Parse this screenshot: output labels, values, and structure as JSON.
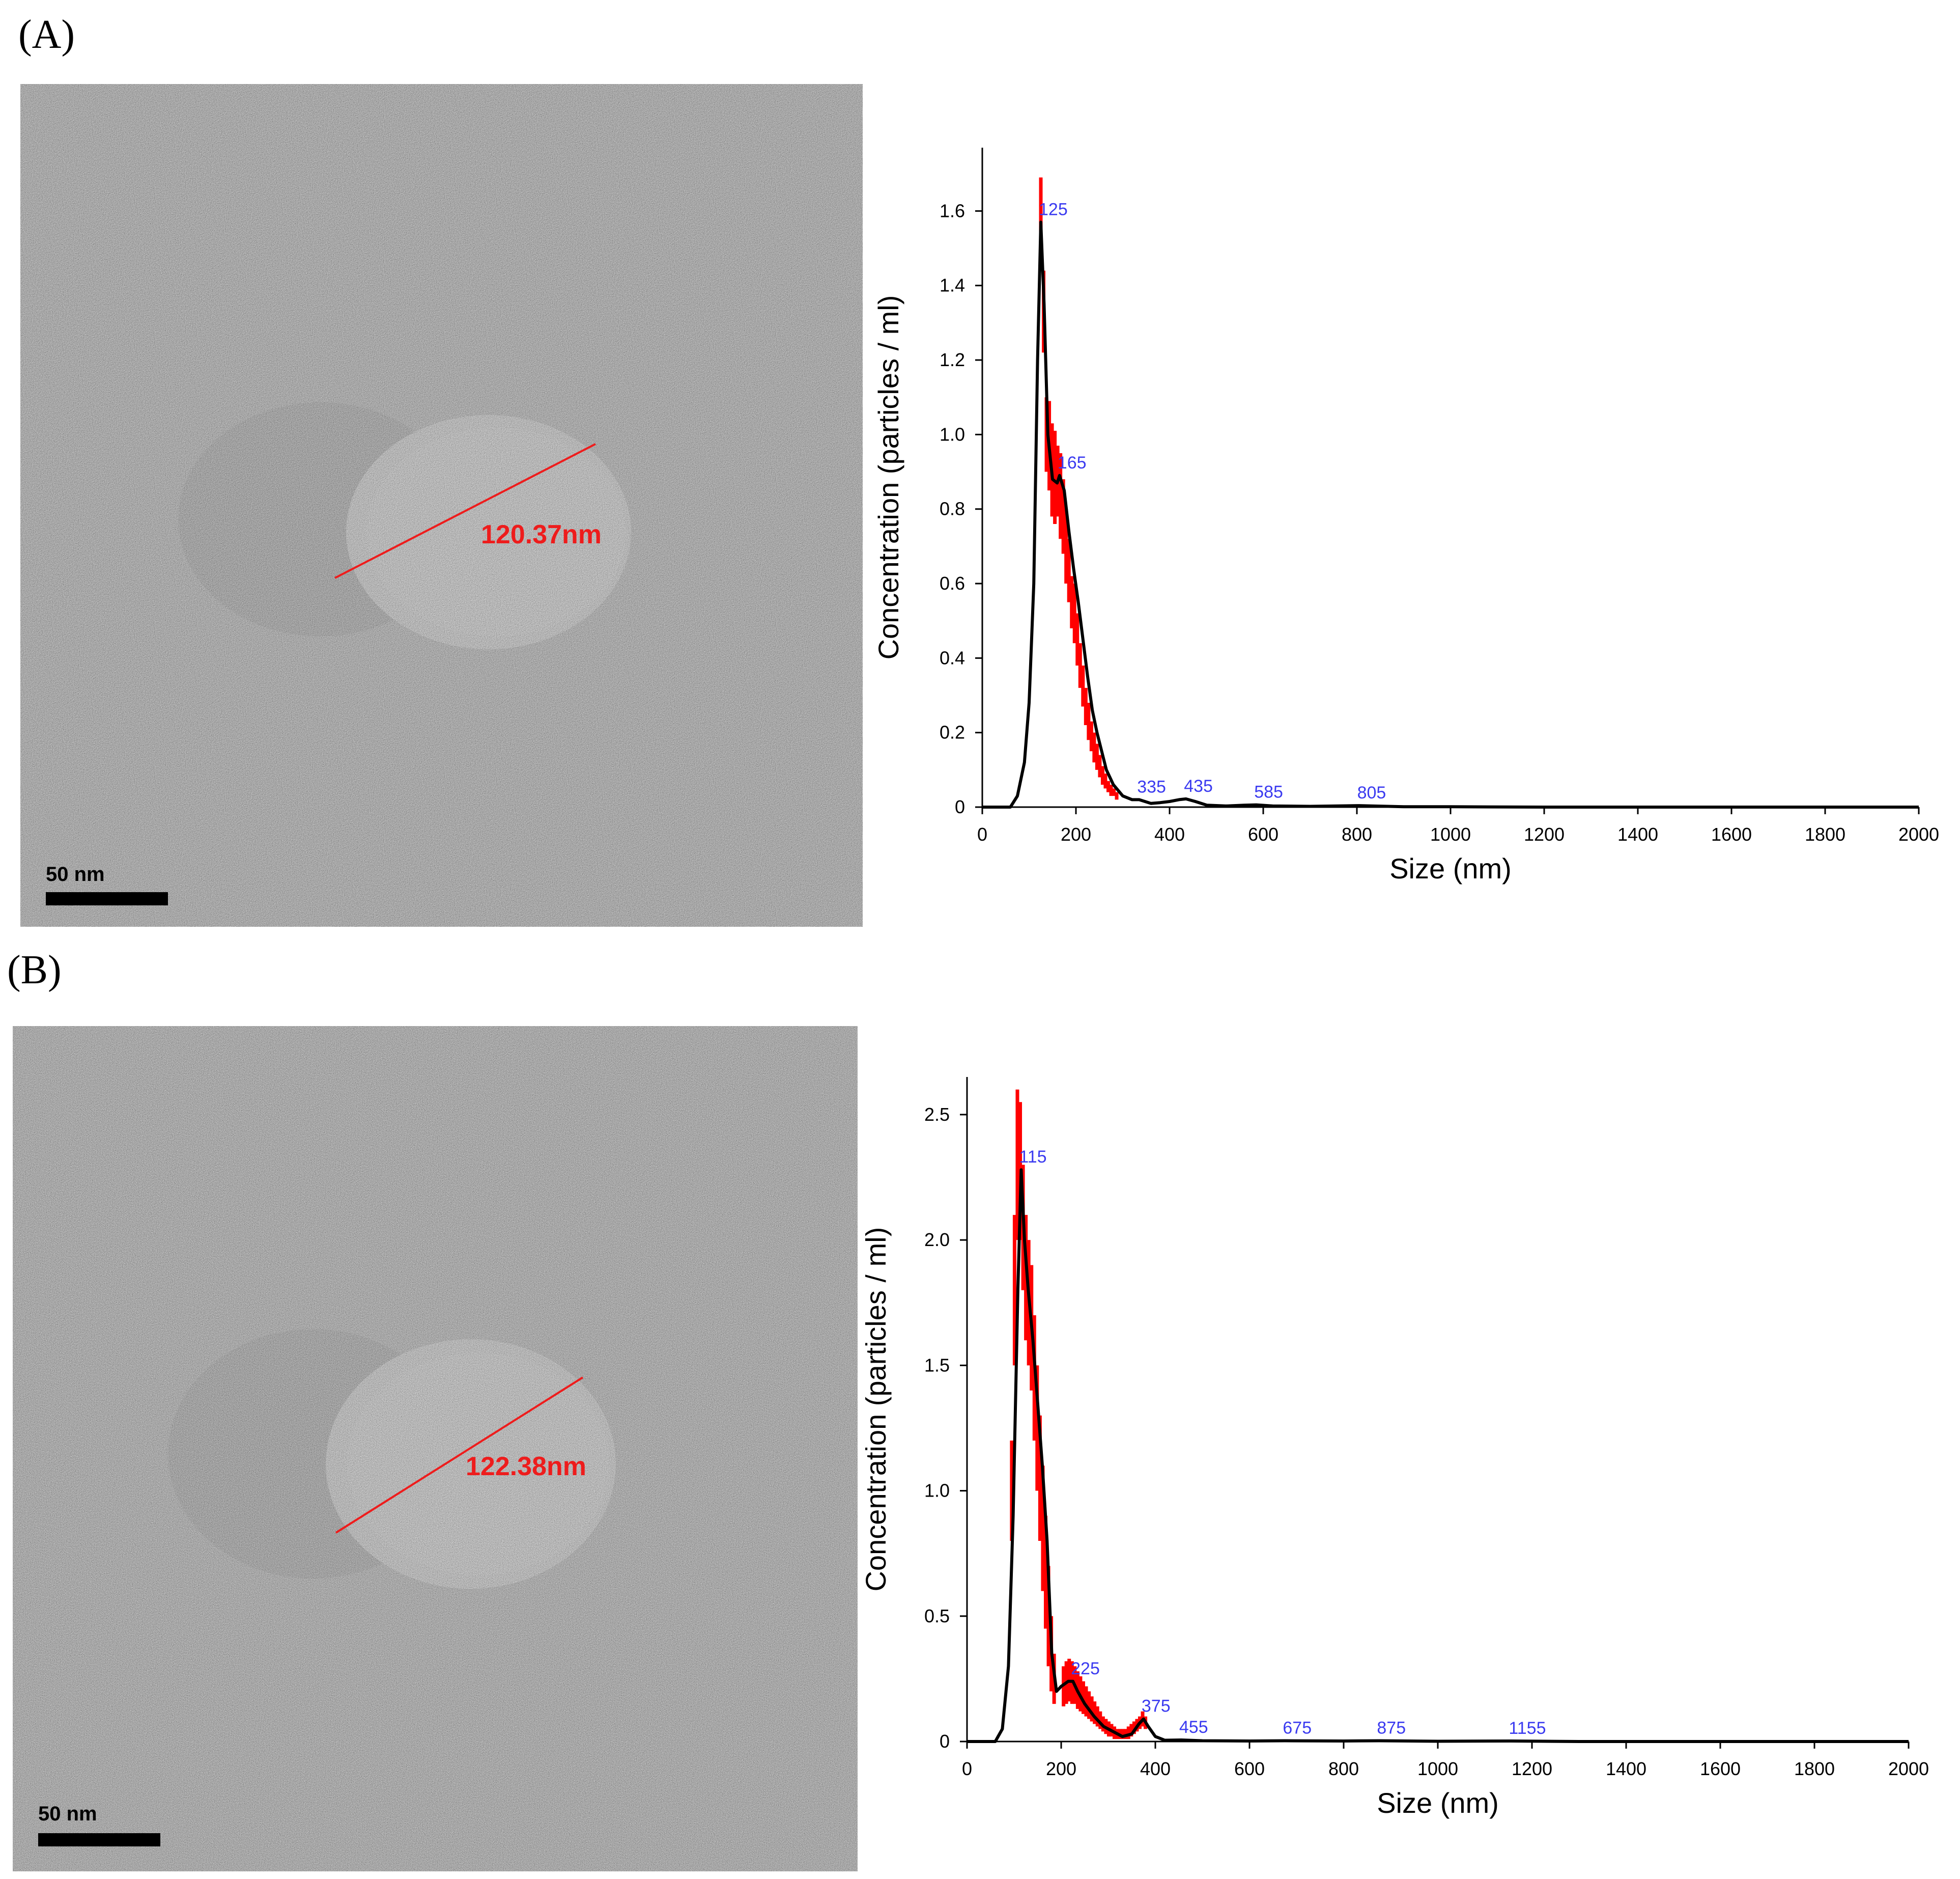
{
  "panels": [
    {
      "label": "(A)",
      "tem": {
        "measurement": "120.37nm",
        "scale_bar": "50 nm"
      }
    },
    {
      "label": "(B)",
      "tem": {
        "measurement": "122.38nm",
        "scale_bar": "50 nm"
      }
    }
  ],
  "colors": {
    "curve": "#000000",
    "error_bars": "#ff0000",
    "peak_labels": "#3b3bf0",
    "measure": "#ee1c1c"
  },
  "chart_data": [
    {
      "type": "line",
      "title": "",
      "xlabel": "Size (nm)",
      "ylabel": "Concentration (particles / ml)",
      "xlim": [
        0,
        2000
      ],
      "ylim": [
        0,
        1.77
      ],
      "xticks": [
        0,
        200,
        400,
        600,
        800,
        1000,
        1200,
        1400,
        1600,
        1800,
        2000
      ],
      "yticks": [
        0,
        0.2,
        0.4,
        0.6,
        0.8,
        1.0,
        1.2,
        1.4,
        1.6
      ],
      "ytick_labels": [
        "0",
        "0.2",
        "0.4",
        "0.6",
        "0.8",
        "1.0",
        "1.2",
        "1.4",
        "1.6"
      ],
      "grid": false,
      "series": [
        {
          "x": [
            0,
            60,
            75,
            90,
            100,
            110,
            118,
            125,
            132,
            140,
            150,
            160,
            165,
            175,
            185,
            195,
            205,
            215,
            225,
            235,
            245,
            255,
            265,
            280,
            300,
            320,
            335,
            360,
            380,
            400,
            420,
            435,
            455,
            480,
            520,
            560,
            585,
            620,
            700,
            805,
            900,
            1000,
            1200,
            1400,
            1600,
            1800,
            2000
          ],
          "y": [
            0,
            0,
            0.03,
            0.12,
            0.28,
            0.6,
            1.2,
            1.57,
            1.35,
            1.0,
            0.88,
            0.87,
            0.89,
            0.85,
            0.74,
            0.64,
            0.55,
            0.45,
            0.35,
            0.26,
            0.2,
            0.15,
            0.1,
            0.06,
            0.03,
            0.02,
            0.02,
            0.01,
            0.012,
            0.015,
            0.02,
            0.022,
            0.015,
            0.005,
            0.003,
            0.005,
            0.006,
            0.003,
            0.002,
            0.004,
            0.001,
            0.001,
            0,
            0,
            0,
            0,
            0
          ]
        }
      ],
      "error_bars": {
        "x": [
          125,
          131,
          137,
          143,
          149,
          155,
          161,
          167,
          173,
          179,
          185,
          191,
          197,
          203,
          209,
          215,
          221,
          227,
          233,
          239,
          245,
          251,
          257,
          263,
          269,
          275,
          281,
          287
        ],
        "low": [
          1.5,
          1.22,
          0.9,
          0.85,
          0.78,
          0.76,
          0.78,
          0.72,
          0.68,
          0.6,
          0.55,
          0.48,
          0.44,
          0.38,
          0.32,
          0.27,
          0.22,
          0.18,
          0.15,
          0.12,
          0.1,
          0.08,
          0.06,
          0.05,
          0.04,
          0.03,
          0.03,
          0.02
        ],
        "high": [
          1.69,
          1.44,
          1.1,
          1.09,
          1.03,
          1.01,
          0.97,
          0.95,
          0.88,
          0.8,
          0.72,
          0.62,
          0.6,
          0.52,
          0.44,
          0.38,
          0.32,
          0.28,
          0.23,
          0.2,
          0.17,
          0.14,
          0.11,
          0.09,
          0.07,
          0.06,
          0.05,
          0.04
        ]
      },
      "peak_labels": [
        {
          "x": 125,
          "y": 1.57,
          "text": "125"
        },
        {
          "x": 165,
          "y": 0.89,
          "text": "165"
        },
        {
          "x": 335,
          "y": 0.02,
          "text": "335"
        },
        {
          "x": 435,
          "y": 0.022,
          "text": "435"
        },
        {
          "x": 585,
          "y": 0.006,
          "text": "585"
        },
        {
          "x": 805,
          "y": 0.004,
          "text": "805"
        }
      ]
    },
    {
      "type": "line",
      "title": "",
      "xlabel": "Size (nm)",
      "ylabel": "Concentration (particles / ml)",
      "xlim": [
        0,
        2000
      ],
      "ylim": [
        0,
        2.65
      ],
      "xticks": [
        0,
        200,
        400,
        600,
        800,
        1000,
        1200,
        1400,
        1600,
        1800,
        2000
      ],
      "yticks": [
        0,
        0.5,
        1.0,
        1.5,
        2.0,
        2.5
      ],
      "ytick_labels": [
        "0",
        "0.5",
        "1.0",
        "1.5",
        "2.0",
        "2.5"
      ],
      "grid": false,
      "series": [
        {
          "x": [
            0,
            60,
            75,
            88,
            98,
            108,
            115,
            122,
            130,
            140,
            150,
            160,
            170,
            180,
            190,
            200,
            215,
            225,
            235,
            250,
            270,
            290,
            310,
            330,
            350,
            365,
            375,
            385,
            400,
            420,
            455,
            500,
            600,
            675,
            800,
            875,
            1000,
            1155,
            1300,
            1500,
            1700,
            2000
          ],
          "y": [
            0,
            0,
            0.05,
            0.3,
            0.9,
            1.8,
            2.28,
            2.0,
            1.8,
            1.6,
            1.35,
            1.1,
            0.8,
            0.35,
            0.2,
            0.22,
            0.24,
            0.24,
            0.2,
            0.15,
            0.1,
            0.06,
            0.04,
            0.02,
            0.03,
            0.07,
            0.09,
            0.06,
            0.02,
            0.005,
            0.006,
            0.003,
            0.002,
            0.003,
            0.002,
            0.003,
            0.001,
            0.002,
            0,
            0,
            0,
            0
          ]
        }
      ],
      "error_bars": {
        "x": [
          95,
          101,
          107,
          113,
          119,
          125,
          131,
          137,
          143,
          149,
          155,
          161,
          167,
          173,
          179,
          185,
          205,
          211,
          217,
          223,
          229,
          235,
          241,
          247,
          253,
          259,
          265,
          271,
          277,
          283,
          289,
          295,
          301,
          307,
          313,
          319,
          325,
          331,
          337,
          343,
          349,
          355,
          361,
          367,
          373,
          379
        ],
        "low": [
          0.8,
          1.5,
          2.0,
          2.0,
          1.8,
          1.6,
          1.5,
          1.4,
          1.2,
          1.0,
          0.8,
          0.6,
          0.45,
          0.3,
          0.2,
          0.15,
          0.14,
          0.15,
          0.16,
          0.15,
          0.15,
          0.13,
          0.12,
          0.11,
          0.1,
          0.09,
          0.08,
          0.07,
          0.06,
          0.05,
          0.04,
          0.03,
          0.02,
          0.02,
          0.01,
          0.01,
          0.01,
          0.01,
          0.01,
          0.01,
          0.02,
          0.03,
          0.04,
          0.05,
          0.06,
          0.05
        ],
        "high": [
          1.2,
          2.1,
          2.6,
          2.55,
          2.3,
          2.1,
          2.0,
          1.9,
          1.7,
          1.5,
          1.3,
          1.1,
          0.9,
          0.7,
          0.5,
          0.35,
          0.3,
          0.32,
          0.33,
          0.32,
          0.3,
          0.28,
          0.26,
          0.24,
          0.22,
          0.2,
          0.18,
          0.16,
          0.14,
          0.12,
          0.1,
          0.09,
          0.08,
          0.07,
          0.06,
          0.05,
          0.05,
          0.05,
          0.05,
          0.06,
          0.07,
          0.08,
          0.09,
          0.1,
          0.12,
          0.1
        ]
      },
      "peak_labels": [
        {
          "x": 115,
          "y": 2.28,
          "text": "115"
        },
        {
          "x": 225,
          "y": 0.24,
          "text": "225"
        },
        {
          "x": 375,
          "y": 0.09,
          "text": "375"
        },
        {
          "x": 455,
          "y": 0.006,
          "text": "455"
        },
        {
          "x": 675,
          "y": 0.003,
          "text": "675"
        },
        {
          "x": 875,
          "y": 0.003,
          "text": "875"
        },
        {
          "x": 1155,
          "y": 0.002,
          "text": "1155"
        }
      ]
    }
  ]
}
